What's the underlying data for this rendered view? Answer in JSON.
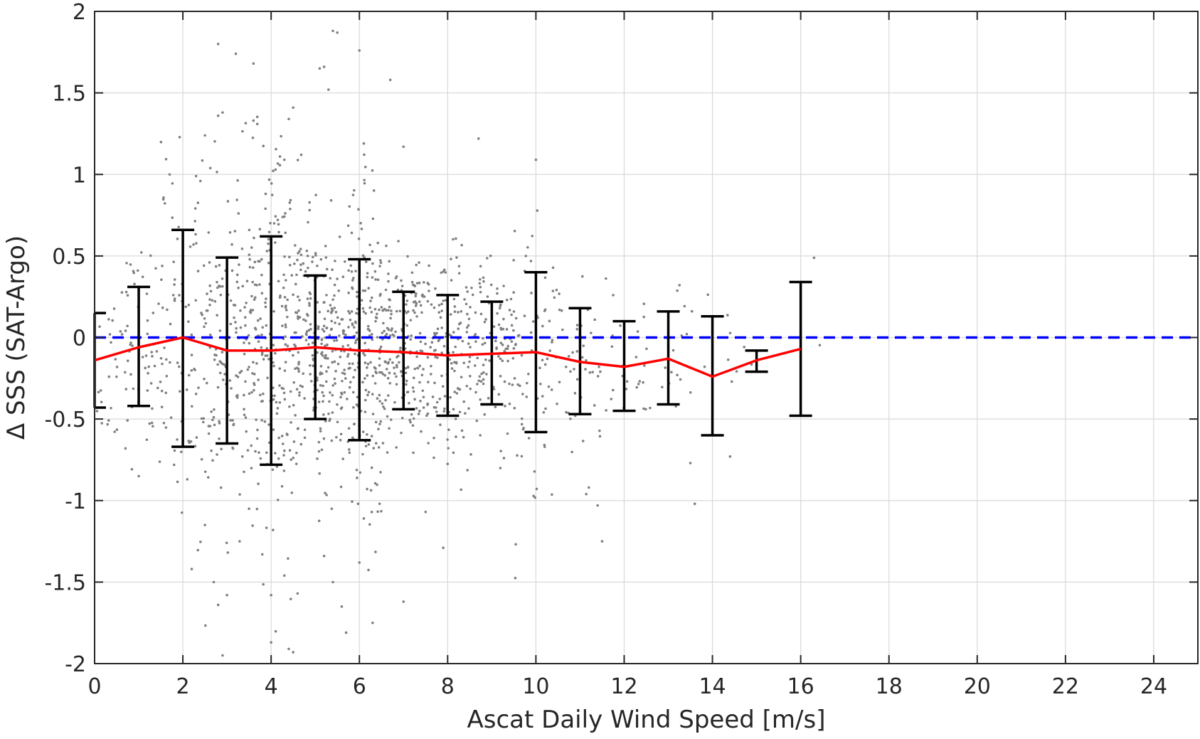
{
  "chart_data": {
    "type": "scatter",
    "xlabel": "Ascat Daily Wind Speed [m/s]",
    "ylabel": "Δ SSS (SAT-Argo)",
    "xlim": [
      0,
      25
    ],
    "ylim": [
      -2,
      2
    ],
    "xticks": [
      "0",
      "2",
      "4",
      "6",
      "8",
      "10",
      "12",
      "14",
      "16",
      "18",
      "20",
      "22",
      "24"
    ],
    "yticks": [
      "-2",
      "-1.5",
      "-1",
      "-0.5",
      "0",
      "0.5",
      "1",
      "1.5",
      "2"
    ],
    "grid": true,
    "reference_line": {
      "y": 0,
      "color": "#0000ff",
      "style": "dashed"
    },
    "mean_line": {
      "color": "#ff0000",
      "x": [
        0,
        1,
        2,
        3,
        4,
        5,
        6,
        7,
        8,
        9,
        10,
        11,
        12,
        13,
        14,
        15,
        16
      ],
      "y": [
        -0.14,
        -0.06,
        0.0,
        -0.08,
        -0.08,
        -0.06,
        -0.08,
        -0.09,
        -0.11,
        -0.1,
        -0.09,
        -0.15,
        -0.18,
        -0.13,
        -0.24,
        -0.14,
        -0.07
      ]
    },
    "error_bars": {
      "color": "#000000",
      "x": [
        0,
        1,
        2,
        3,
        4,
        5,
        6,
        7,
        8,
        9,
        10,
        11,
        12,
        13,
        14,
        15,
        16
      ],
      "lower": [
        -0.43,
        -0.42,
        -0.67,
        -0.65,
        -0.78,
        -0.5,
        -0.63,
        -0.44,
        -0.48,
        -0.41,
        -0.58,
        -0.47,
        -0.45,
        -0.41,
        -0.6,
        -0.21,
        -0.48
      ],
      "upper": [
        0.15,
        0.31,
        0.66,
        0.49,
        0.62,
        0.38,
        0.48,
        0.28,
        0.26,
        0.22,
        0.4,
        0.18,
        0.1,
        0.16,
        0.13,
        -0.08,
        0.34
      ]
    },
    "scatter": {
      "color": "#808080",
      "note_points": [
        [
          2.8,
          1.8
        ],
        [
          3.2,
          1.74
        ],
        [
          3.6,
          1.68
        ],
        [
          5.4,
          1.88
        ],
        [
          5.5,
          1.87
        ],
        [
          6.0,
          1.76
        ],
        [
          5.1,
          1.65
        ],
        [
          5.2,
          1.66
        ],
        [
          4.5,
          1.41
        ],
        [
          5.3,
          1.52
        ],
        [
          6.7,
          1.58
        ],
        [
          2.8,
          1.36
        ],
        [
          2.9,
          1.38
        ],
        [
          3.6,
          1.33
        ],
        [
          4.4,
          1.34
        ],
        [
          6.1,
          1.19
        ],
        [
          7.0,
          1.17
        ],
        [
          8.7,
          1.22
        ],
        [
          4.2,
          1.11
        ],
        [
          4.3,
          1.09
        ],
        [
          10.0,
          1.09
        ],
        [
          1.7,
          1.0
        ],
        [
          2.3,
          0.99
        ],
        [
          4.1,
          1.03
        ],
        [
          0.7,
          -0.68
        ],
        [
          1.0,
          -0.85
        ],
        [
          2.5,
          -1.15
        ],
        [
          2.2,
          -1.42
        ],
        [
          2.7,
          -1.5
        ],
        [
          2.8,
          -1.64
        ],
        [
          3.0,
          -1.58
        ],
        [
          2.9,
          -1.95
        ],
        [
          3.5,
          -1.05
        ],
        [
          3.8,
          -1.33
        ],
        [
          4.0,
          -1.58
        ],
        [
          4.3,
          -1.46
        ],
        [
          4.4,
          -1.91
        ],
        [
          4.5,
          -1.93
        ],
        [
          4.0,
          -1.87
        ],
        [
          4.6,
          -1.57
        ],
        [
          5.2,
          -1.34
        ],
        [
          5.4,
          -1.5
        ],
        [
          5.6,
          -1.65
        ],
        [
          5.7,
          -1.81
        ],
        [
          6.0,
          -1.38
        ],
        [
          6.3,
          -1.75
        ],
        [
          6.1,
          -1.11
        ],
        [
          7.0,
          -1.62
        ],
        [
          7.5,
          -1.07
        ],
        [
          7.9,
          -1.29
        ],
        [
          11.2,
          -0.92
        ],
        [
          11.4,
          -1.03
        ],
        [
          11.5,
          -1.25
        ],
        [
          13.5,
          -0.77
        ],
        [
          13.6,
          -1.02
        ],
        [
          14.4,
          -0.73
        ]
      ]
    }
  }
}
